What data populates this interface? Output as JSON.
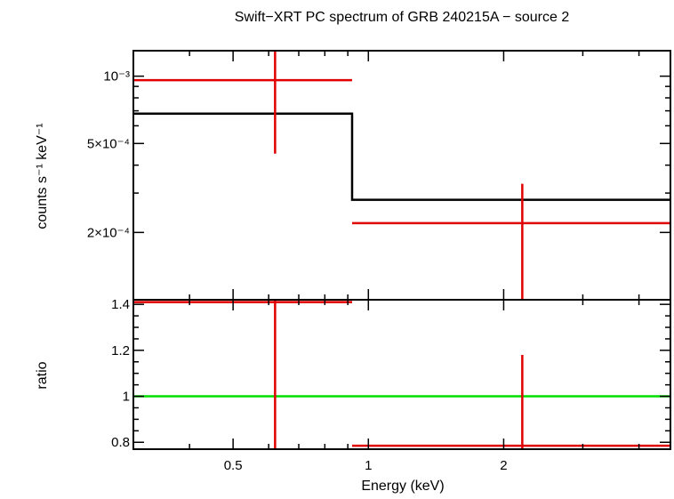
{
  "chart_data": {
    "type": "line",
    "title": "Swift−XRT PC spectrum of GRB 240215A − source 2",
    "xlabel": "Energy (keV)",
    "x_scale": "log",
    "xlim": [
      0.3,
      4.7
    ],
    "x_ticks": [
      {
        "value": 0.5,
        "label": "0.5"
      },
      {
        "value": 1,
        "label": "1"
      },
      {
        "value": 2,
        "label": "2"
      }
    ],
    "x_minor_ticks": [
      0.3,
      0.4,
      0.6,
      0.7,
      0.8,
      0.9,
      3,
      4
    ],
    "colors": {
      "data": "#e00000",
      "model": "#000000",
      "unity": "#00dd00"
    },
    "panels": [
      {
        "name": "spectrum",
        "ylabel": "counts s⁻¹ keV⁻¹",
        "y_scale": "log",
        "ylim": [
          0.0001,
          0.0013
        ],
        "y_ticks": [
          {
            "value": 0.001,
            "label": "10⁻³"
          },
          {
            "value": 0.0005,
            "label": "5×10⁻⁴"
          },
          {
            "value": 0.0002,
            "label": "2×10⁻⁴"
          }
        ],
        "y_minor_ticks": [
          0.0003,
          0.0004,
          0.0006,
          0.0007,
          0.0008,
          0.0009
        ],
        "data": [
          {
            "x": 0.62,
            "xlo": 0.3,
            "xhi": 0.92,
            "y": 0.00096,
            "ylo": 0.00045,
            "yhi": 0.0013
          },
          {
            "x": 2.2,
            "xlo": 0.92,
            "xhi": 4.7,
            "y": 0.00022,
            "ylo": 0.0001,
            "yhi": 0.00033
          }
        ],
        "model": [
          {
            "xlo": 0.3,
            "xhi": 0.92,
            "y": 0.00068
          },
          {
            "xlo": 0.92,
            "xhi": 4.7,
            "y": 0.00028
          }
        ]
      },
      {
        "name": "ratio",
        "ylabel": "ratio",
        "y_scale": "linear",
        "ylim": [
          0.77,
          1.42
        ],
        "y_ticks": [
          {
            "value": 0.8,
            "label": "0.8"
          },
          {
            "value": 1,
            "label": "1"
          },
          {
            "value": 1.2,
            "label": "1.2"
          },
          {
            "value": 1.4,
            "label": "1.4"
          }
        ],
        "y_minor_ticks": [
          0.85,
          0.9,
          0.95,
          1.05,
          1.1,
          1.15,
          1.25,
          1.3,
          1.35
        ],
        "reference_line": 1,
        "data": [
          {
            "x": 0.62,
            "xlo": 0.3,
            "xhi": 0.92,
            "y": 1.41,
            "ylo": 0.77,
            "yhi": 1.42
          },
          {
            "x": 2.2,
            "xlo": 0.92,
            "xhi": 4.7,
            "y": 0.785,
            "ylo": 0.77,
            "yhi": 1.18
          }
        ]
      }
    ]
  }
}
